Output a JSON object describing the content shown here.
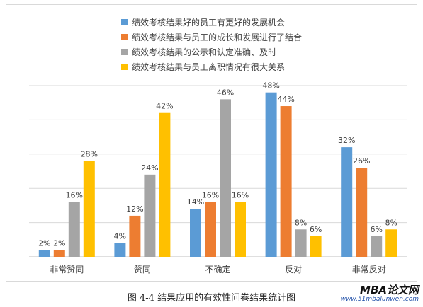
{
  "chart_data": {
    "type": "bar",
    "categories": [
      "非常赞同",
      "赞同",
      "不确定",
      "反对",
      "非常反对"
    ],
    "series": [
      {
        "name": "绩效考核结果好的员工有更好的发展机会",
        "color": "#5b9bd5",
        "values": [
          2,
          4,
          14,
          48,
          32
        ]
      },
      {
        "name": "绩效考核结果与员工的成长和发展进行了结合",
        "color": "#ed7d31",
        "values": [
          2,
          12,
          16,
          44,
          26
        ]
      },
      {
        "name": "绩效考核结果的公示和认定准确、及时",
        "color": "#a5a5a5",
        "values": [
          16,
          24,
          46,
          8,
          6
        ]
      },
      {
        "name": "绩效考核结果与员工离职情况有很大关系",
        "color": "#ffc000",
        "values": [
          28,
          42,
          16,
          6,
          8
        ]
      }
    ],
    "value_labels": [
      [
        "2%",
        "4%",
        "14%",
        "48%",
        "32%"
      ],
      [
        "2%",
        "12%",
        "16%",
        "44%",
        "26%"
      ],
      [
        "16%",
        "24%",
        "46%",
        "8%",
        "6%"
      ],
      [
        "28%",
        "42%",
        "16%",
        "6%",
        "8%"
      ]
    ],
    "ylim": [
      0,
      50
    ],
    "grid": true,
    "legend_position": "top"
  },
  "caption": "图 4-4   结果应用的有效性问卷结果统计图",
  "watermark": {
    "brand": "MBA论文网",
    "url": "www.51mbalunwen.com"
  }
}
